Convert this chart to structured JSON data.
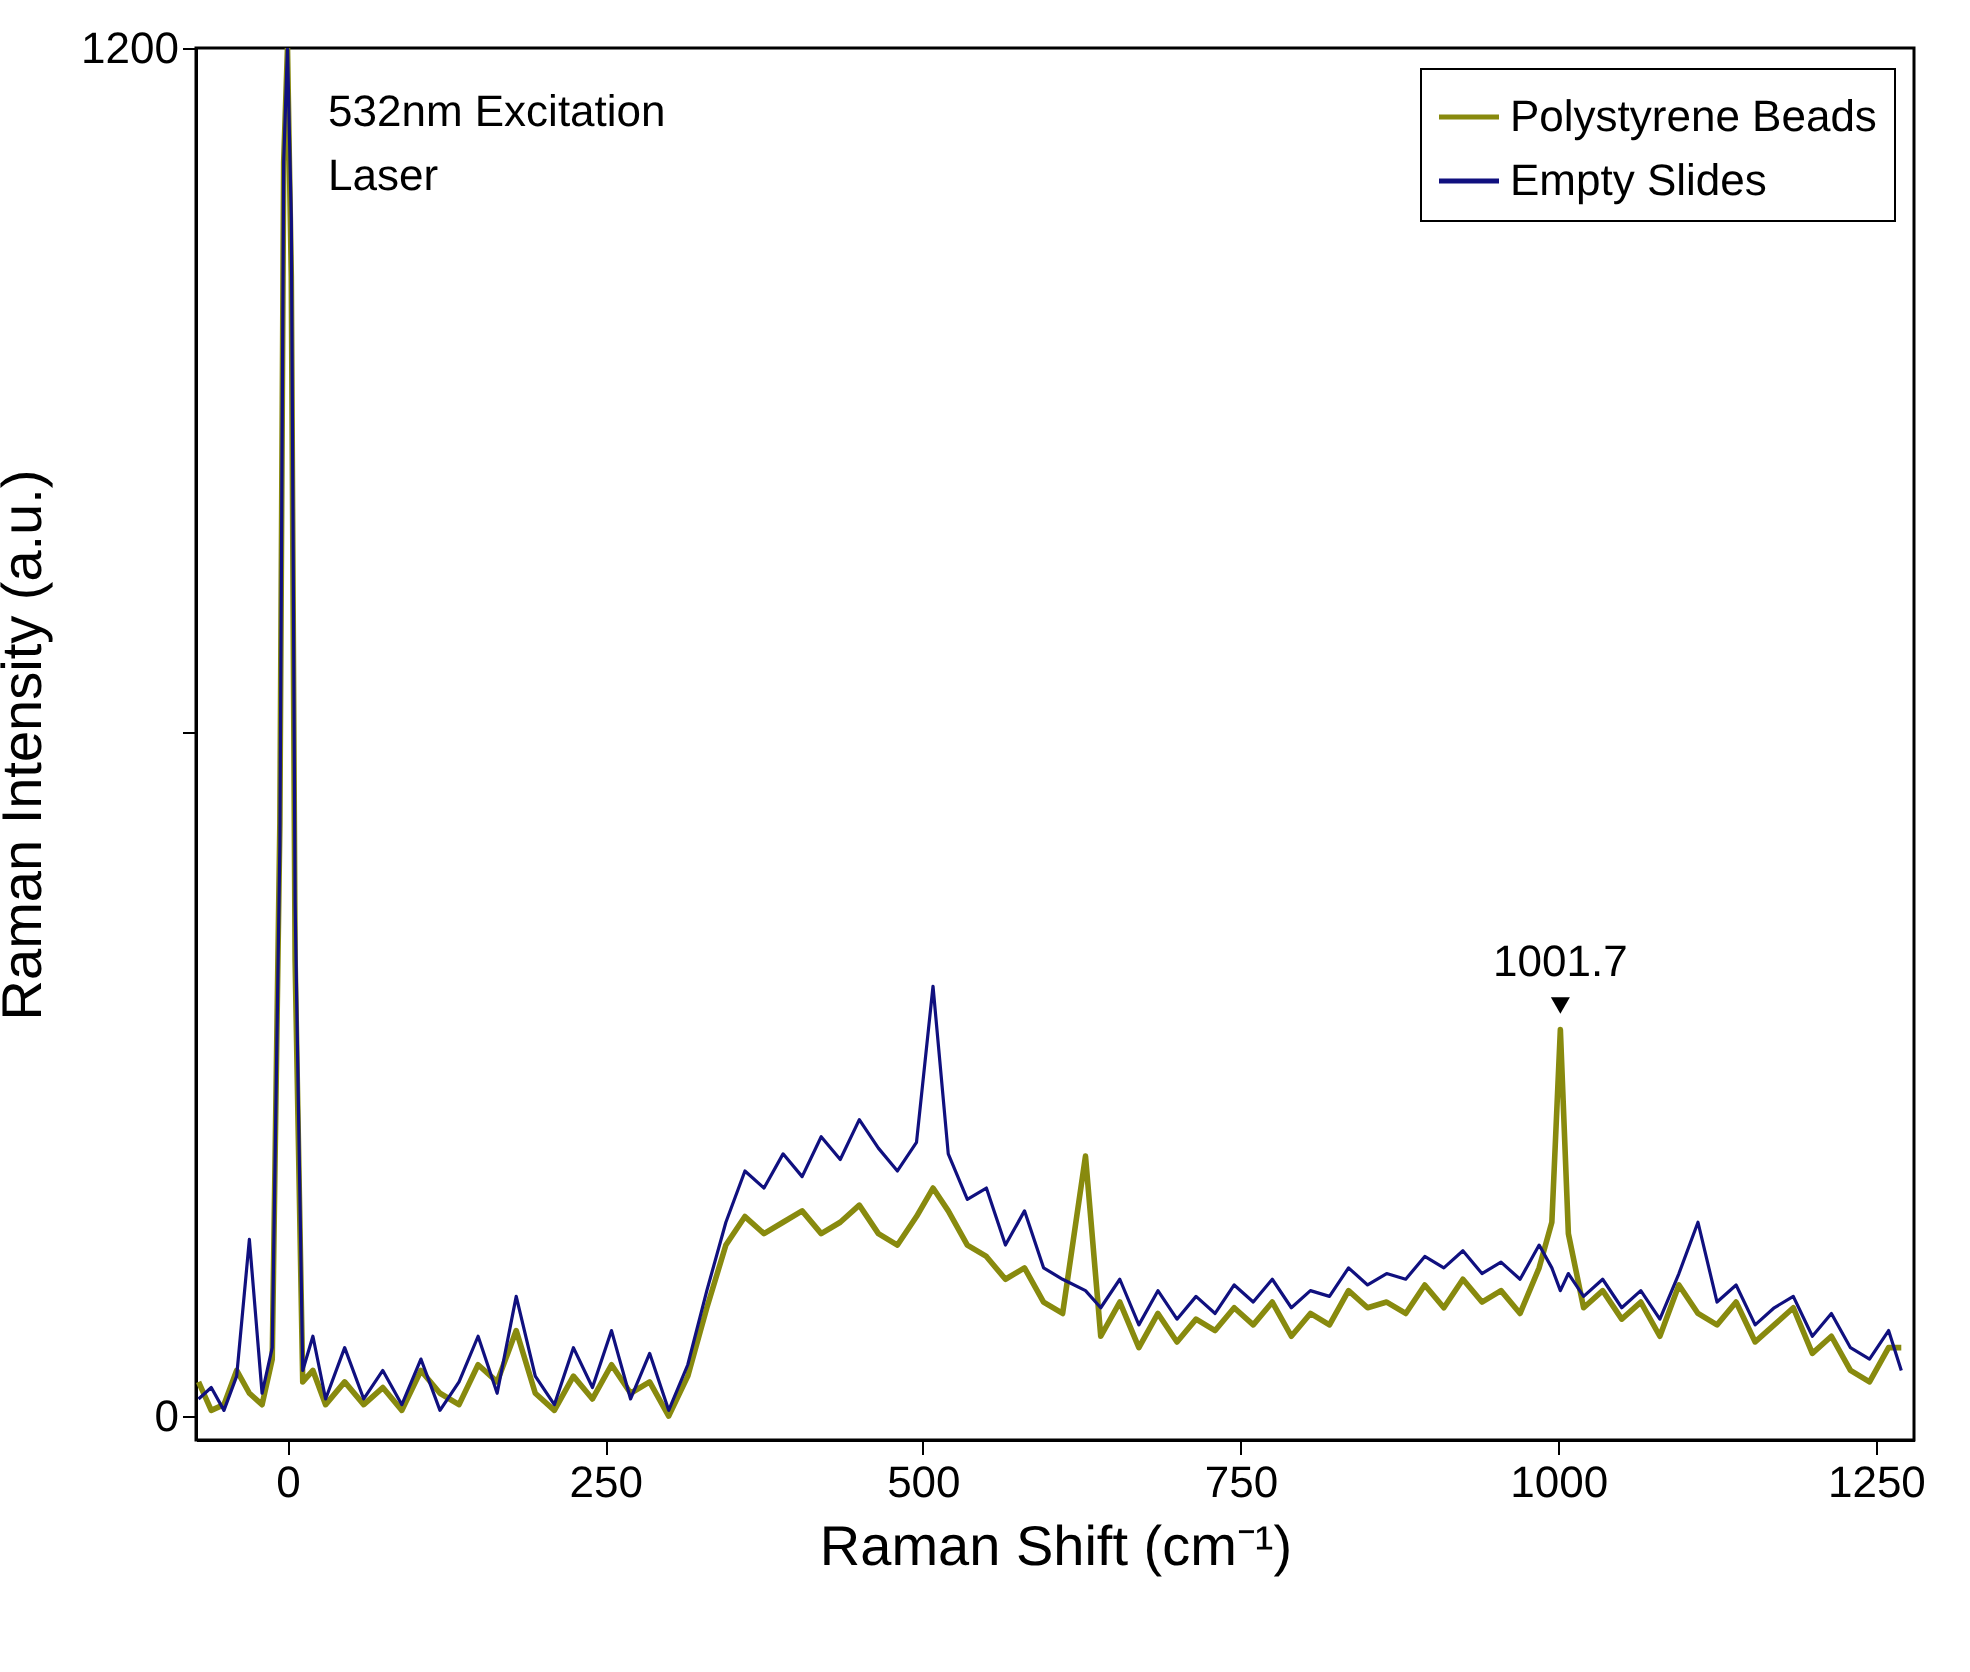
{
  "chart_data": {
    "type": "line",
    "xlabel": "Raman Shift (cm⁻¹)",
    "ylabel": "Raman Intensity (a.u.)",
    "x": [
      -70,
      -60,
      -50,
      -40,
      -30,
      -20,
      -12,
      -6,
      -3,
      0,
      3,
      6,
      12,
      20,
      30,
      45,
      60,
      75,
      90,
      105,
      120,
      135,
      150,
      165,
      180,
      195,
      210,
      225,
      240,
      255,
      270,
      285,
      300,
      315,
      330,
      345,
      360,
      375,
      390,
      405,
      420,
      435,
      450,
      465,
      480,
      495,
      508,
      520,
      535,
      550,
      565,
      580,
      595,
      610,
      628,
      640,
      655,
      670,
      685,
      700,
      715,
      730,
      745,
      760,
      775,
      790,
      805,
      820,
      835,
      850,
      865,
      880,
      895,
      910,
      925,
      940,
      955,
      970,
      985,
      995,
      1001.7,
      1008,
      1020,
      1035,
      1050,
      1065,
      1080,
      1095,
      1110,
      1125,
      1140,
      1155,
      1170,
      1185,
      1200,
      1215,
      1230,
      1245,
      1260,
      1270
    ],
    "series": [
      {
        "name": "Polystyrene Beads",
        "color": "#888a0e",
        "values": [
          30,
          5,
          10,
          40,
          20,
          10,
          50,
          520,
          1100,
          1200,
          1000,
          400,
          30,
          40,
          10,
          30,
          10,
          25,
          5,
          40,
          20,
          10,
          45,
          30,
          75,
          20,
          5,
          35,
          15,
          45,
          20,
          30,
          0,
          35,
          95,
          150,
          175,
          160,
          170,
          180,
          160,
          170,
          185,
          160,
          150,
          175,
          200,
          180,
          150,
          140,
          120,
          130,
          100,
          90,
          228,
          70,
          100,
          60,
          90,
          65,
          85,
          75,
          95,
          80,
          100,
          70,
          90,
          80,
          110,
          95,
          100,
          90,
          115,
          95,
          120,
          100,
          110,
          90,
          130,
          170,
          339,
          160,
          95,
          110,
          85,
          100,
          70,
          115,
          90,
          80,
          100,
          65,
          80,
          95,
          55,
          70,
          40,
          30,
          60,
          60
        ]
      },
      {
        "name": "Empty Slides",
        "color": "#10107f",
        "values": [
          15,
          25,
          5,
          35,
          155,
          20,
          60,
          500,
          1100,
          1200,
          1050,
          450,
          40,
          70,
          15,
          60,
          15,
          40,
          10,
          50,
          5,
          30,
          70,
          20,
          105,
          35,
          10,
          60,
          25,
          75,
          15,
          55,
          5,
          45,
          110,
          170,
          215,
          200,
          230,
          210,
          245,
          225,
          260,
          235,
          215,
          240,
          377,
          230,
          190,
          200,
          150,
          180,
          130,
          120,
          110,
          95,
          120,
          80,
          110,
          85,
          105,
          90,
          115,
          100,
          120,
          95,
          110,
          105,
          130,
          115,
          125,
          120,
          140,
          130,
          145,
          125,
          135,
          120,
          150,
          130,
          110,
          125,
          105,
          120,
          95,
          110,
          85,
          125,
          170,
          100,
          115,
          80,
          95,
          105,
          70,
          90,
          60,
          50,
          75,
          40
        ]
      }
    ],
    "xlim": [
      -72,
      1280
    ],
    "xticks": [
      0,
      250,
      500,
      750,
      1000,
      1250
    ],
    "ylim": [
      -21,
      1200
    ],
    "yticks": [
      0,
      {
        "value": 600,
        "label": null
      },
      1200
    ],
    "annotations": [
      "532nm Excitation\nLaser",
      {
        "text": "1001.7",
        "x": 1001.7,
        "y": 339
      }
    ],
    "legend": "top right",
    "grid": false
  }
}
